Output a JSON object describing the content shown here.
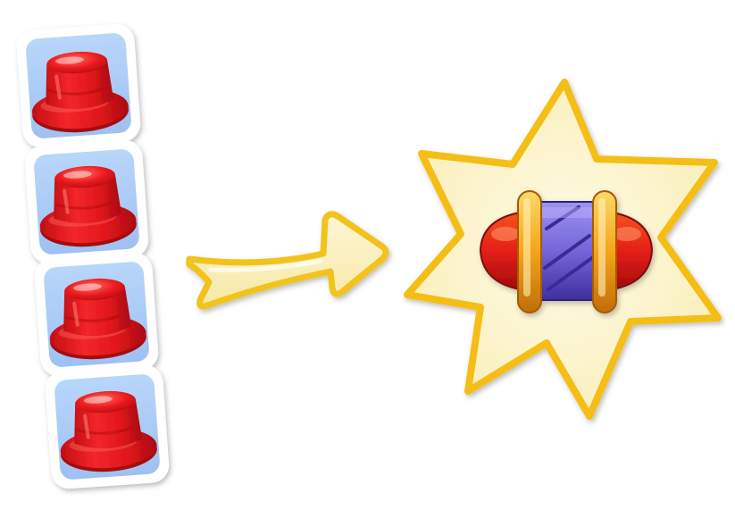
{
  "tutorial": {
    "input_pieces": {
      "count": 4,
      "piece_type": "red-button-icon",
      "tile_color": "#a9c9f5",
      "piece_color": "#e8141a"
    },
    "transition_icon": "arrow-right-icon",
    "result": {
      "piece_type": "rocket-booster-icon",
      "burst_color": "#fbf3c6",
      "burst_outline": "#f6c21c",
      "body_color": "#7b6fd6",
      "cap_color": "#e3211a",
      "ring_color": "#f5a51a"
    }
  }
}
